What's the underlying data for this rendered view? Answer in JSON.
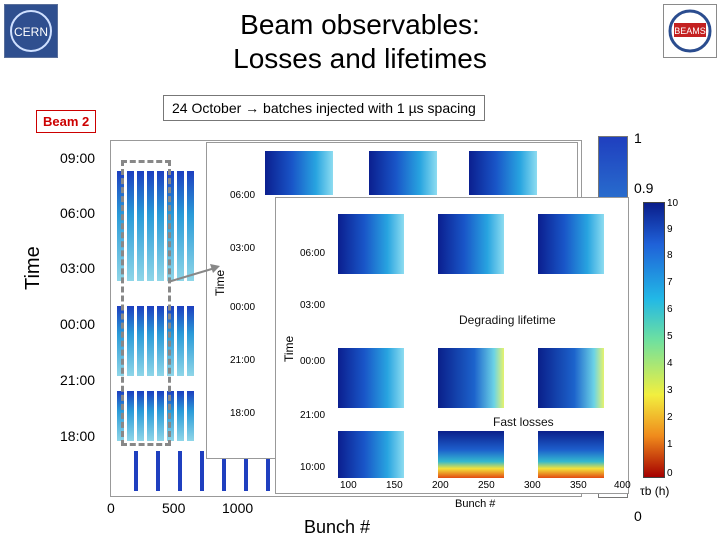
{
  "header": {
    "title_line1": "Beam observables:",
    "title_line2": "Losses and lifetimes",
    "left_logo": "CERN",
    "right_logo": "BEAMS"
  },
  "labels": {
    "beam": "Beam 2",
    "caption": "24 October → batches injected with 1 µs spacing",
    "degrading": "Degrading lifetime",
    "fast_losses": "Fast losses",
    "colorbar_unit": "τb (h)"
  },
  "main_plot": {
    "y_axis_title": "Time",
    "x_axis_title": "Bunch #",
    "y_ticks": [
      "09:00",
      "06:00",
      "03:00",
      "00:00",
      "21:00",
      "18:00"
    ],
    "x_ticks": [
      "0",
      "500",
      "1000"
    ],
    "colorbar_ticks": [
      "1",
      "0.9",
      "0"
    ]
  },
  "mid_plot": {
    "y_axis_title": "Time",
    "y_ticks": [
      "06:00",
      "03:00",
      "00:00",
      "21:00",
      "18:00"
    ]
  },
  "zoom_plot": {
    "y_axis_title": "Time",
    "y_ticks": [
      "06:00",
      "03:00",
      "00:00",
      "21:00",
      "10:00"
    ],
    "x_axis_title": "Bunch #",
    "x_ticks": [
      "100",
      "150",
      "200",
      "250",
      "300",
      "350",
      "400"
    ],
    "colorbar_ticks": [
      "10",
      "9",
      "8",
      "7",
      "6",
      "5",
      "4",
      "3",
      "2",
      "1",
      "0"
    ]
  }
}
